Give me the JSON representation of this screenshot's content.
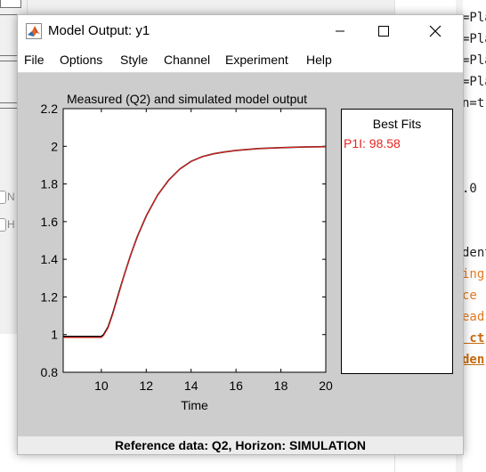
{
  "window": {
    "title": "Model Output: y1",
    "menu": [
      "File",
      "Options",
      "Style",
      "Channel",
      "Experiment",
      "Help"
    ]
  },
  "plot": {
    "title": "Measured (Q2) and simulated model output",
    "xlabel": "Time"
  },
  "best_fits": {
    "title": "Best Fits",
    "entries": [
      "P1I: 98.58"
    ]
  },
  "status": "Reference data:  Q2, Horizon: SIMULATION",
  "background": {
    "left_labels": [
      "N",
      "H"
    ],
    "code_lines": [
      "=Pla",
      "=Pla",
      "=Pla",
      "=Pla",
      "n=t",
      ".0",
      "dent",
      "ing",
      "ce ",
      "ead",
      " ct",
      "den"
    ]
  },
  "colors": {
    "measured": "#000000",
    "simulated": "#e8231f",
    "axes_background": "#ffffff",
    "figure_background": "#cdcdcd"
  },
  "chart_data": {
    "type": "line",
    "title": "Measured (Q2) and simulated model output",
    "xlabel": "Time",
    "ylabel": "",
    "xlim": [
      8.3,
      20
    ],
    "ylim": [
      0.8,
      2.2
    ],
    "xticks": [
      10,
      12,
      14,
      16,
      18,
      20
    ],
    "yticks": [
      0.8,
      1,
      1.2,
      1.4,
      1.6,
      1.8,
      2,
      2.2
    ],
    "grid": false,
    "series": [
      {
        "x": [
          8.3,
          9,
          9.5,
          10,
          10.1,
          10.3,
          10.5,
          10.8,
          11,
          11.3,
          11.6,
          12,
          12.5,
          13,
          13.5,
          14,
          14.5,
          15,
          15.5,
          16,
          17,
          18,
          19,
          20
        ],
        "y": [
          0.99,
          0.99,
          0.99,
          0.99,
          1.0,
          1.04,
          1.11,
          1.23,
          1.31,
          1.42,
          1.52,
          1.63,
          1.74,
          1.82,
          1.88,
          1.92,
          1.945,
          1.96,
          1.97,
          1.978,
          1.988,
          1.993,
          1.996,
          1.998
        ]
      },
      {
        "name": "P1I",
        "x": [
          8.3,
          9,
          9.5,
          10,
          10.1,
          10.3,
          10.5,
          10.8,
          11,
          11.3,
          11.6,
          12,
          12.5,
          13,
          13.5,
          14,
          14.5,
          15,
          15.5,
          16,
          17,
          18,
          19,
          20
        ],
        "y": [
          0.985,
          0.985,
          0.985,
          0.985,
          0.995,
          1.035,
          1.105,
          1.225,
          1.31,
          1.42,
          1.52,
          1.63,
          1.74,
          1.82,
          1.88,
          1.92,
          1.945,
          1.96,
          1.97,
          1.978,
          1.988,
          1.993,
          1.996,
          1.998
        ]
      }
    ]
  }
}
